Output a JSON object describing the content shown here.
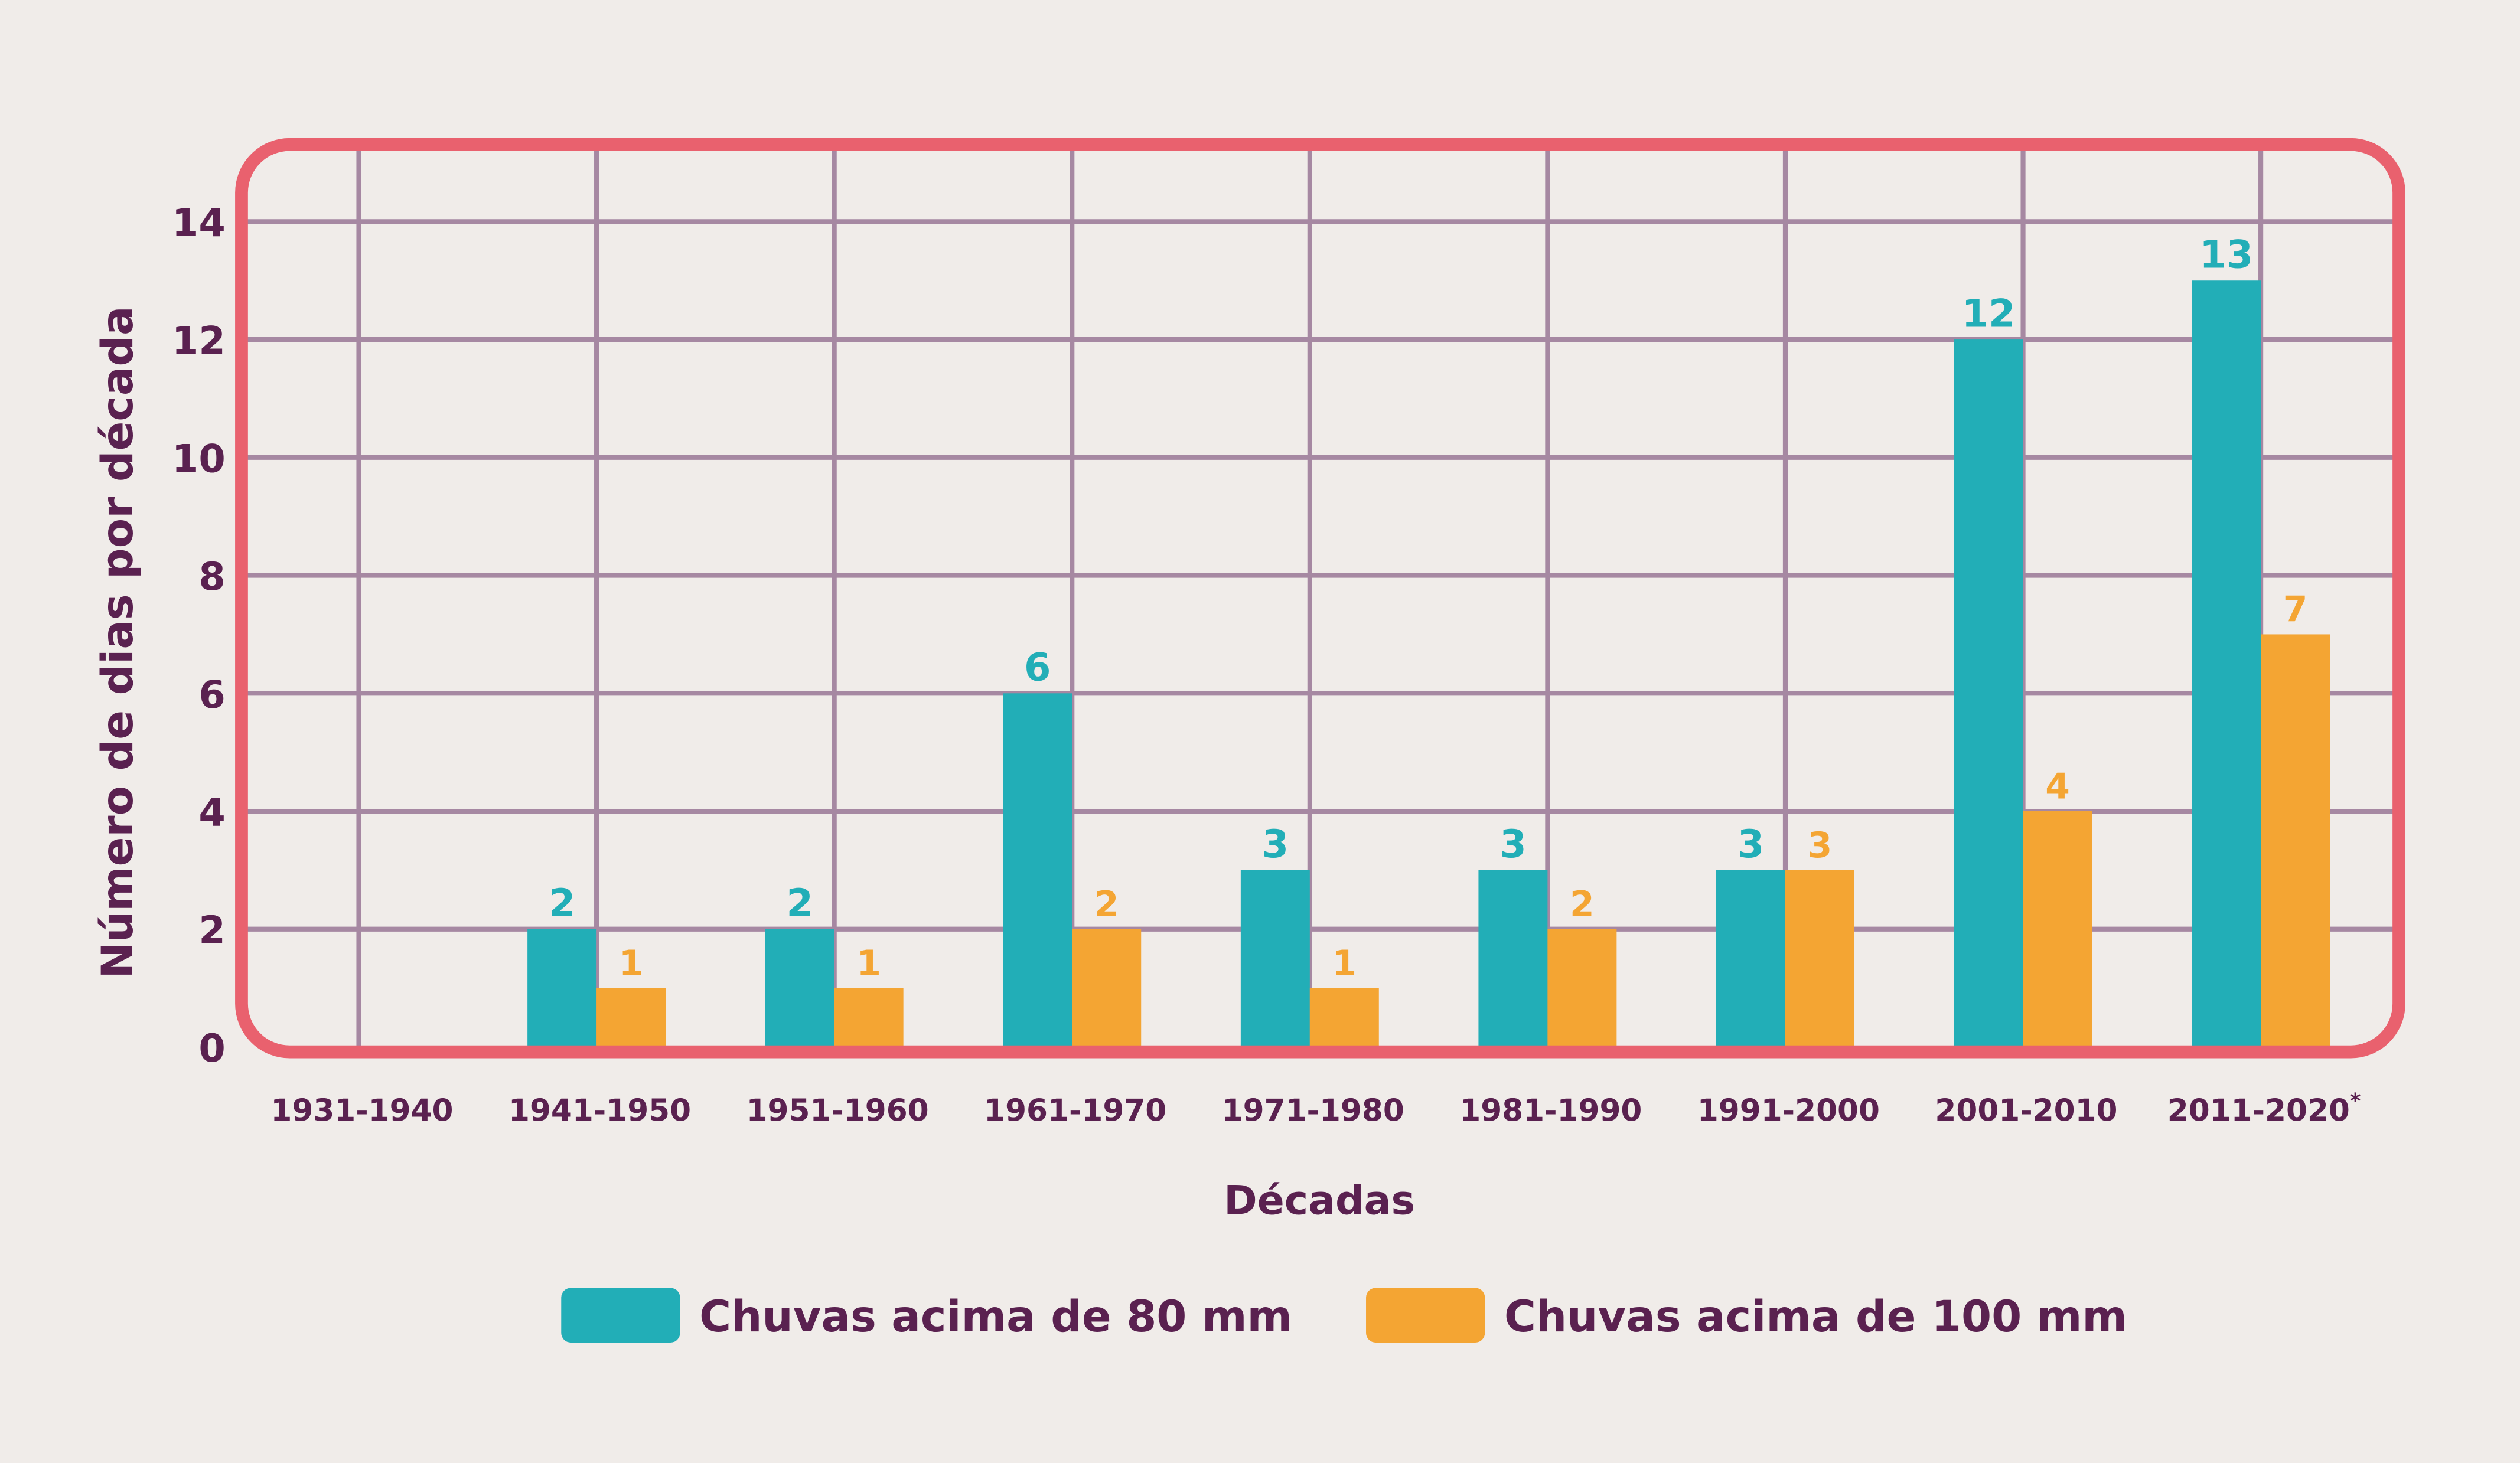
{
  "chart_data": {
    "type": "bar",
    "title": "",
    "xlabel": "Décadas",
    "ylabel": "Número de dias por década",
    "ylim": [
      0,
      14
    ],
    "yticks": [
      0,
      2,
      4,
      6,
      8,
      10,
      12,
      14
    ],
    "grid": true,
    "legend_position": "bottom",
    "categories": [
      "1931-1940",
      "1941-1950",
      "1951-1960",
      "1961-1970",
      "1971-1980",
      "1981-1990",
      "1991-2000",
      "2001-2010",
      "2011-2020*"
    ],
    "series": [
      {
        "name": "Chuvas acima de 80 mm",
        "color": "#22aeb7",
        "values": [
          0,
          2,
          2,
          6,
          3,
          3,
          3,
          12,
          13
        ]
      },
      {
        "name": "Chuvas acima de 100 mm",
        "color": "#f4a533",
        "values": [
          0,
          1,
          1,
          2,
          1,
          2,
          3,
          4,
          7
        ]
      }
    ],
    "colors": {
      "frame": "#e9616e",
      "grid": "#a688a2",
      "text": "#5a2150",
      "background": "#f0ece9"
    }
  }
}
